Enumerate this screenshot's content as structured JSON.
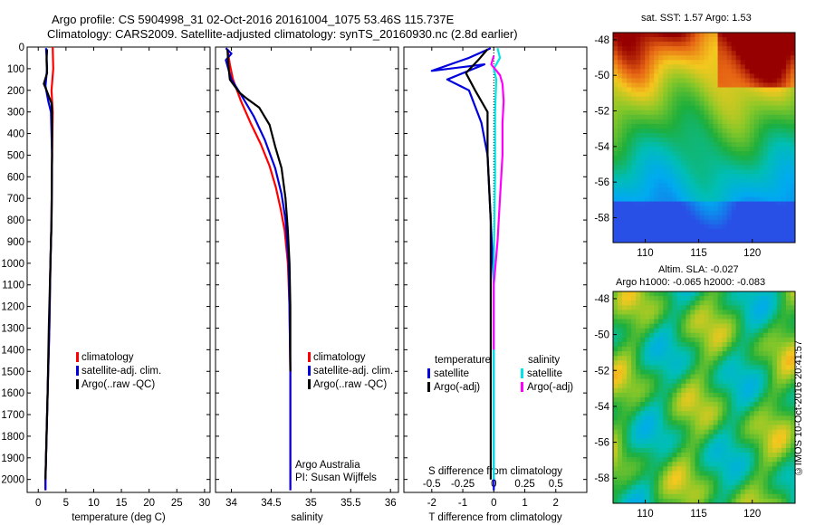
{
  "header": {
    "line1": "Argo profile: CS 5904998_31 02-Oct-2016 20161004_1075 53.46S 115.737E",
    "line2": "Climatology: CARS2009. Satellite-adjusted climatology: synTS_20160930.nc (2.8d earlier)"
  },
  "depth_ticks": [
    "0",
    "100",
    "200",
    "300",
    "400",
    "500",
    "600",
    "700",
    "800",
    "900",
    "1000",
    "1100",
    "1200",
    "1300",
    "1400",
    "1500",
    "1600",
    "1700",
    "1800",
    "1900",
    "2000"
  ],
  "colors": {
    "climatology": "#ff0000",
    "satellite": "#0000dd",
    "argo": "#000000",
    "sal_satellite": "#00e5e5",
    "sal_argo": "#ff00ff"
  },
  "chart_data": [
    {
      "type": "line",
      "xlabel": "temperature (deg C)",
      "xlim": [
        -2,
        31
      ],
      "ylim": [
        2060,
        0
      ],
      "xticks": [
        "0",
        "5",
        "10",
        "15",
        "20",
        "25",
        "30"
      ],
      "legend": [
        "climatology",
        "satellite-adj. clim.",
        "Argo(..raw -QC)"
      ],
      "series": [
        {
          "name": "climatology",
          "color": "#ff0000",
          "points": [
            [
              2.6,
              0
            ],
            [
              2.7,
              100
            ],
            [
              2.4,
              200
            ],
            [
              2.6,
              300
            ],
            [
              2.5,
              500
            ],
            [
              2.4,
              800
            ],
            [
              2.2,
              1000
            ],
            [
              2.0,
              1300
            ],
            [
              1.7,
              1600
            ],
            [
              1.3,
              2000
            ],
            [
              1.3,
              2050
            ]
          ]
        },
        {
          "name": "satellite-adj. clim.",
          "color": "#0000dd",
          "points": [
            [
              1.4,
              5
            ],
            [
              1.5,
              40
            ],
            [
              1.6,
              100
            ],
            [
              1.3,
              180
            ],
            [
              1.8,
              250
            ],
            [
              2.3,
              300
            ],
            [
              2.5,
              500
            ],
            [
              2.4,
              800
            ],
            [
              2.2,
              1000
            ],
            [
              2.0,
              1300
            ],
            [
              1.7,
              1600
            ],
            [
              1.3,
              2000
            ],
            [
              1.3,
              2050
            ]
          ]
        },
        {
          "name": "Argo(..raw -QC)",
          "color": "#000000",
          "points": [
            [
              1.6,
              10
            ],
            [
              1.5,
              60
            ],
            [
              1.6,
              120
            ],
            [
              1.0,
              170
            ],
            [
              1.5,
              200
            ],
            [
              2.4,
              260
            ],
            [
              2.5,
              300
            ],
            [
              2.5,
              500
            ],
            [
              2.4,
              800
            ],
            [
              2.2,
              1000
            ],
            [
              1.9,
              1300
            ],
            [
              1.7,
              1600
            ],
            [
              1.3,
              2000
            ]
          ]
        }
      ]
    },
    {
      "type": "line",
      "xlabel": "salinity",
      "xlim": [
        33.8,
        36.1
      ],
      "ylim": [
        2060,
        0
      ],
      "xticks": [
        "34",
        "34.5",
        "35",
        "35.5",
        "36"
      ],
      "legend": [
        "climatology",
        "satellite-adj. clim.",
        "Argo(..raw -QC)"
      ],
      "annotation": [
        "Argo Australia",
        "PI: Susan Wijffels"
      ],
      "series": [
        {
          "name": "climatology",
          "color": "#ff0000",
          "points": [
            [
              33.95,
              10
            ],
            [
              33.98,
              80
            ],
            [
              34.02,
              150
            ],
            [
              34.12,
              250
            ],
            [
              34.24,
              350
            ],
            [
              34.37,
              450
            ],
            [
              34.48,
              550
            ],
            [
              34.56,
              650
            ],
            [
              34.62,
              750
            ],
            [
              34.67,
              850
            ],
            [
              34.71,
              1000
            ],
            [
              34.73,
              1200
            ],
            [
              34.74,
              1500
            ],
            [
              34.74,
              2050
            ]
          ]
        },
        {
          "name": "satellite-adj. clim.",
          "color": "#0000dd",
          "points": [
            [
              33.93,
              5
            ],
            [
              34.0,
              30
            ],
            [
              33.93,
              60
            ],
            [
              33.96,
              100
            ],
            [
              34.0,
              150
            ],
            [
              34.12,
              220
            ],
            [
              34.28,
              320
            ],
            [
              34.42,
              430
            ],
            [
              34.55,
              560
            ],
            [
              34.63,
              680
            ],
            [
              34.68,
              800
            ],
            [
              34.72,
              1000
            ],
            [
              34.73,
              1200
            ],
            [
              34.74,
              1500
            ],
            [
              34.74,
              2050
            ]
          ]
        },
        {
          "name": "Argo(..raw -QC)",
          "color": "#000000",
          "points": [
            [
              33.95,
              10
            ],
            [
              33.96,
              80
            ],
            [
              33.98,
              150
            ],
            [
              34.1,
              210
            ],
            [
              34.2,
              240
            ],
            [
              34.35,
              280
            ],
            [
              34.48,
              360
            ],
            [
              34.55,
              460
            ],
            [
              34.63,
              560
            ],
            [
              34.68,
              700
            ],
            [
              34.71,
              850
            ],
            [
              34.73,
              1000
            ],
            [
              34.74,
              1200
            ],
            [
              34.74,
              1500
            ]
          ]
        }
      ]
    },
    {
      "type": "line",
      "xlabel": "T difference from climatology",
      "x2label": "S difference from climatology",
      "xlim": [
        -2.9,
        3.0
      ],
      "x2lim": [
        -0.725,
        0.75
      ],
      "ylim": [
        2060,
        0
      ],
      "xticks": [
        "-2",
        "-1",
        "0",
        "1",
        "2"
      ],
      "x2ticks": [
        "-0.5",
        "-0.25",
        "0",
        "0.25",
        "0.5"
      ],
      "legend_temperature": {
        "title": "temperature",
        "items": [
          "satellite",
          "Argo(-adj)"
        ]
      },
      "legend_salinity": {
        "title": "salinity",
        "items": [
          "satellite",
          "Argo(-adj)"
        ]
      },
      "series": [
        {
          "name": "satellite",
          "group": "temperature",
          "color": "#0000dd",
          "points": [
            [
              -0.1,
              5
            ],
            [
              -0.8,
              50
            ],
            [
              -2.0,
              110
            ],
            [
              -0.3,
              80
            ],
            [
              -1.5,
              150
            ],
            [
              -0.8,
              200
            ],
            [
              -0.4,
              350
            ],
            [
              -0.2,
              500
            ],
            [
              -0.1,
              800
            ],
            [
              0.0,
              1100
            ],
            [
              0.0,
              2050
            ]
          ]
        },
        {
          "name": "Argo(-adj)",
          "group": "temperature",
          "color": "#000000",
          "points": [
            [
              -0.2,
              10
            ],
            [
              -0.5,
              60
            ],
            [
              -0.9,
              120
            ],
            [
              -0.6,
              200
            ],
            [
              -0.2,
              300
            ],
            [
              -0.2,
              500
            ],
            [
              -0.1,
              800
            ],
            [
              -0.1,
              1100
            ],
            [
              -0.1,
              1500
            ],
            [
              -0.1,
              2000
            ]
          ]
        },
        {
          "name": "satellite",
          "group": "salinity",
          "color": "#00e5e5",
          "points": [
            [
              0.03,
              5
            ],
            [
              0.05,
              50
            ],
            [
              0.0,
              100
            ],
            [
              0.02,
              150
            ],
            [
              0.01,
              300
            ],
            [
              0.01,
              600
            ],
            [
              0.0,
              1000
            ],
            [
              0.0,
              2000
            ]
          ]
        },
        {
          "name": "Argo(-adj)",
          "group": "salinity",
          "color": "#ff00ff",
          "points": [
            [
              0.0,
              40
            ],
            [
              -0.02,
              80
            ],
            [
              0.05,
              130
            ],
            [
              0.07,
              170
            ],
            [
              0.08,
              250
            ],
            [
              0.07,
              350
            ],
            [
              0.07,
              500
            ],
            [
              0.05,
              700
            ],
            [
              0.03,
              900
            ],
            [
              0.0,
              1100
            ],
            [
              0.0,
              1400
            ]
          ]
        }
      ]
    },
    {
      "type": "heatmap",
      "title": "sat. SST: 1.57 Argo: 1.53",
      "xticks": [
        "110",
        "115",
        "120"
      ],
      "yticks": [
        "-48",
        "-50",
        "-52",
        "-54",
        "-56",
        "-58"
      ]
    },
    {
      "type": "heatmap",
      "title": "Altim. SLA: -0.027",
      "subtitle": "Argo h1000: -0.065 h2000: -0.083",
      "xticks": [
        "110",
        "115",
        "120"
      ],
      "yticks": [
        "-48",
        "-50",
        "-52",
        "-54",
        "-56",
        "-58"
      ]
    }
  ],
  "watermark": "©IMOS 10-Oct-2016 20:41:57"
}
